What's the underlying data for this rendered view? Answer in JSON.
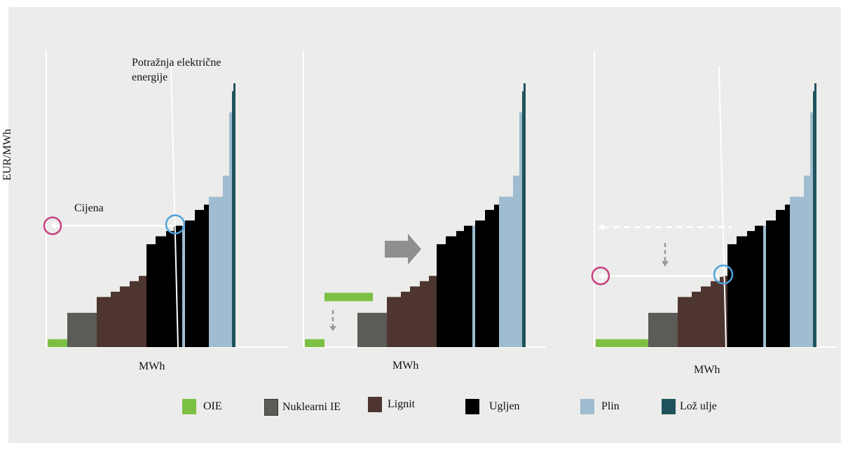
{
  "chart_data": {
    "type": "bar",
    "title": "",
    "ylabel": "EUR/MWh",
    "xlabel": "MWh",
    "legend_position": "bottom",
    "colors": {
      "OIE": "#7bc043",
      "Nuklearni IE": "#5b5b57",
      "Lignit": "#4e3530",
      "Ugljen": "#000000",
      "Plin": "#9fbcd0",
      "Lož ulje": "#1f535b"
    },
    "legend": [
      "OIE",
      "Nuklearni IE",
      "Lignit",
      "Ugljen",
      "Plin",
      "Lož ulje"
    ],
    "panels": [
      {
        "id": "panel-1",
        "xlabel": "MWh",
        "ylabel": "EUR/MWh",
        "annotations": {
          "demand_label": "Potražnja električne energije",
          "price_label": "Cijena"
        },
        "supply_curve": [
          {
            "source": "OIE",
            "x0": 0,
            "x1": 28,
            "price": 3
          },
          {
            "source": "Nuklearni IE",
            "x0": 28,
            "x1": 70,
            "price": 13
          },
          {
            "source": "Lignit",
            "x0": 70,
            "x1": 90,
            "price": 19
          },
          {
            "source": "Lignit",
            "x0": 90,
            "x1": 103,
            "price": 21
          },
          {
            "source": "Lignit",
            "x0": 103,
            "x1": 117,
            "price": 23
          },
          {
            "source": "Lignit",
            "x0": 117,
            "x1": 130,
            "price": 25
          },
          {
            "source": "Lignit",
            "x0": 130,
            "x1": 141,
            "price": 27
          },
          {
            "source": "Ugljen",
            "x0": 141,
            "x1": 154,
            "price": 39
          },
          {
            "source": "Ugljen",
            "x0": 154,
            "x1": 169,
            "price": 42
          },
          {
            "source": "Ugljen",
            "x0": 169,
            "x1": 180,
            "price": 44
          },
          {
            "source": "Ugljen",
            "x0": 180,
            "x1": 192,
            "price": 46
          },
          {
            "source": "Plin",
            "x0": 192,
            "x1": 196,
            "price": 46
          },
          {
            "source": "Ugljen",
            "x0": 196,
            "x1": 210,
            "price": 48
          },
          {
            "source": "Ugljen",
            "x0": 210,
            "x1": 223,
            "price": 52
          },
          {
            "source": "Ugljen",
            "x0": 223,
            "x1": 230,
            "price": 54
          },
          {
            "source": "Plin",
            "x0": 230,
            "x1": 250,
            "price": 57
          },
          {
            "source": "Plin",
            "x0": 250,
            "x1": 259,
            "price": 65
          },
          {
            "source": "Plin",
            "x0": 259,
            "x1": 263,
            "price": 89
          },
          {
            "source": "Lož ulje",
            "x0": 263,
            "x1": 265,
            "price": 97
          },
          {
            "source": "Lož ulje",
            "x0": 265,
            "x1": 268,
            "price": 100
          }
        ],
        "demand_line": {
          "x_top": 176,
          "x_bottom": 186
        },
        "clearing": {
          "x": 182,
          "price": 46
        }
      },
      {
        "id": "panel-2",
        "xlabel": "MWh",
        "supply_curve": [
          {
            "source": "OIE",
            "x0": 0,
            "x1": 28,
            "price": 3
          },
          {
            "source": "Nuklearni IE",
            "x0": 75,
            "x1": 117,
            "price": 13
          },
          {
            "source": "Lignit",
            "x0": 117,
            "x1": 137,
            "price": 19
          },
          {
            "source": "Lignit",
            "x0": 137,
            "x1": 150,
            "price": 21
          },
          {
            "source": "Lignit",
            "x0": 150,
            "x1": 164,
            "price": 23
          },
          {
            "source": "Lignit",
            "x0": 164,
            "x1": 177,
            "price": 25
          },
          {
            "source": "Lignit",
            "x0": 177,
            "x1": 188,
            "price": 27
          },
          {
            "source": "Ugljen",
            "x0": 188,
            "x1": 201,
            "price": 39
          },
          {
            "source": "Ugljen",
            "x0": 201,
            "x1": 216,
            "price": 42
          },
          {
            "source": "Ugljen",
            "x0": 216,
            "x1": 227,
            "price": 44
          },
          {
            "source": "Ugljen",
            "x0": 227,
            "x1": 239,
            "price": 46
          },
          {
            "source": "Plin",
            "x0": 239,
            "x1": 243,
            "price": 46
          },
          {
            "source": "Ugljen",
            "x0": 243,
            "x1": 257,
            "price": 48
          },
          {
            "source": "Ugljen",
            "x0": 257,
            "x1": 270,
            "price": 52
          },
          {
            "source": "Ugljen",
            "x0": 270,
            "x1": 277,
            "price": 54
          },
          {
            "source": "Plin",
            "x0": 277,
            "x1": 297,
            "price": 57
          },
          {
            "source": "Plin",
            "x0": 297,
            "x1": 306,
            "price": 65
          },
          {
            "source": "Plin",
            "x0": 306,
            "x1": 310,
            "price": 89
          },
          {
            "source": "Lož ulje",
            "x0": 310,
            "x1": 312,
            "price": 97
          },
          {
            "source": "Lož ulje",
            "x0": 312,
            "x1": 315,
            "price": 100
          }
        ],
        "added_oie": {
          "x0": 28,
          "x1": 75,
          "price": 19
        }
      },
      {
        "id": "panel-3",
        "xlabel": "MWh",
        "supply_curve": [
          {
            "source": "OIE",
            "x0": 0,
            "x1": 75,
            "price": 3
          },
          {
            "source": "Nuklearni IE",
            "x0": 75,
            "x1": 117,
            "price": 13
          },
          {
            "source": "Lignit",
            "x0": 117,
            "x1": 137,
            "price": 19
          },
          {
            "source": "Lignit",
            "x0": 137,
            "x1": 150,
            "price": 21
          },
          {
            "source": "Lignit",
            "x0": 150,
            "x1": 164,
            "price": 23
          },
          {
            "source": "Lignit",
            "x0": 164,
            "x1": 177,
            "price": 25
          },
          {
            "source": "Lignit",
            "x0": 177,
            "x1": 188,
            "price": 27
          },
          {
            "source": "Ugljen",
            "x0": 188,
            "x1": 201,
            "price": 39
          },
          {
            "source": "Ugljen",
            "x0": 201,
            "x1": 216,
            "price": 42
          },
          {
            "source": "Ugljen",
            "x0": 216,
            "x1": 227,
            "price": 44
          },
          {
            "source": "Ugljen",
            "x0": 227,
            "x1": 239,
            "price": 46
          },
          {
            "source": "Plin",
            "x0": 239,
            "x1": 243,
            "price": 46
          },
          {
            "source": "Ugljen",
            "x0": 243,
            "x1": 257,
            "price": 48
          },
          {
            "source": "Ugljen",
            "x0": 257,
            "x1": 270,
            "price": 52
          },
          {
            "source": "Ugljen",
            "x0": 270,
            "x1": 277,
            "price": 54
          },
          {
            "source": "Plin",
            "x0": 277,
            "x1": 297,
            "price": 57
          },
          {
            "source": "Plin",
            "x0": 297,
            "x1": 306,
            "price": 65
          },
          {
            "source": "Plin",
            "x0": 306,
            "x1": 310,
            "price": 89
          },
          {
            "source": "Lož ulje",
            "x0": 310,
            "x1": 312,
            "price": 97
          },
          {
            "source": "Lož ulje",
            "x0": 312,
            "x1": 315,
            "price": 100
          }
        ],
        "demand_line": {
          "x_top": 176,
          "x_bottom": 186
        },
        "clearing": {
          "x": 182,
          "price": 27
        },
        "previous_price": 46
      }
    ]
  }
}
